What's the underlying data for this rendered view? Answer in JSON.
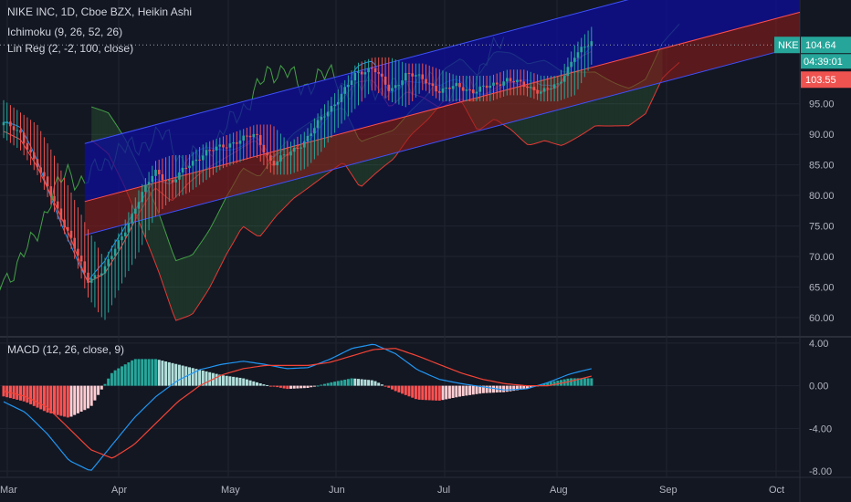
{
  "header": {
    "title": "NIKE INC, 1D, Cboe BZX, Heikin Ashi",
    "indicator1": "Ichimoku (9, 26, 52, 26)",
    "indicator2": "Lin Reg (2, -2, 100, close)",
    "macd": "MACD (12, 26, close, 9)"
  },
  "price_tags": {
    "symbol": "NKE",
    "last": "104.64",
    "countdown": "04:39:01",
    "lower": "103.55"
  },
  "colors": {
    "bg": "#131722",
    "up": "#26a69a",
    "down": "#ef5350",
    "macd_line": "#2196f3",
    "signal_line": "#f44336",
    "cloud_green": "#4caf50",
    "cloud_red": "#f44336",
    "reg_blue": "#0d0d9b",
    "reg_red": "#8b1a1a"
  },
  "chart_data": [
    {
      "type": "candlestick",
      "title": "NIKE INC, 1D, Cboe BZX, Heikin Ashi",
      "x_ticks": [
        "Mar",
        "Apr",
        "May",
        "Jun",
        "Jul",
        "Aug",
        "Sep",
        "Oct"
      ],
      "y_ticks": [
        "95.00",
        "90.00",
        "85.00",
        "80.00",
        "75.00",
        "70.00",
        "65.00",
        "60.00"
      ],
      "ylim": [
        57,
        112
      ],
      "last_price": 104.64,
      "ohlc_anchors": [
        [
          94,
          95,
          90,
          92
        ],
        [
          92,
          93,
          88,
          90
        ],
        [
          90,
          91,
          84,
          85
        ],
        [
          85,
          86,
          78,
          79
        ],
        [
          79,
          80,
          72,
          73
        ],
        [
          73,
          74,
          64,
          66
        ],
        [
          66,
          69,
          60,
          68
        ],
        [
          68,
          74,
          66,
          73
        ],
        [
          73,
          80,
          71,
          79
        ],
        [
          79,
          85,
          77,
          84
        ],
        [
          84,
          86,
          80,
          82
        ],
        [
          82,
          86,
          81,
          85
        ],
        [
          85,
          88,
          83,
          87
        ],
        [
          87,
          89,
          85,
          88
        ],
        [
          88,
          90,
          86,
          89
        ],
        [
          89,
          91,
          87,
          90
        ],
        [
          90,
          91,
          84,
          85
        ],
        [
          85,
          88,
          84,
          87
        ],
        [
          87,
          90,
          85,
          89
        ],
        [
          89,
          94,
          88,
          93
        ],
        [
          93,
          97,
          92,
          96
        ],
        [
          96,
          101,
          95,
          100
        ],
        [
          100,
          102,
          98,
          101
        ],
        [
          101,
          102,
          96,
          97
        ],
        [
          97,
          101,
          95,
          100
        ],
        [
          100,
          101,
          98,
          99
        ],
        [
          99,
          100,
          96,
          97
        ],
        [
          97,
          99,
          96,
          98
        ],
        [
          98,
          99,
          96,
          97
        ],
        [
          97,
          99,
          96,
          98
        ],
        [
          98,
          100,
          97,
          99
        ],
        [
          99,
          100,
          97,
          98
        ],
        [
          98,
          99,
          96,
          97
        ],
        [
          97,
          99,
          96,
          98
        ],
        [
          98,
          104,
          97,
          103
        ],
        [
          103,
          107,
          102,
          105
        ]
      ]
    },
    {
      "type": "bar+line",
      "title": "MACD (12, 26, close, 9)",
      "y_ticks": [
        "4.00",
        "0.00",
        "-4.00",
        "-8.00"
      ],
      "ylim": [
        -8.5,
        4.5
      ],
      "macd_anchors": [
        -1.5,
        -2.5,
        -4.5,
        -7.0,
        -8.0,
        -5.5,
        -3.0,
        -1.0,
        0.5,
        1.5,
        2.0,
        2.3,
        2.0,
        1.6,
        1.7,
        2.5,
        3.5,
        3.9,
        3.0,
        1.5,
        0.6,
        0.2,
        -0.1,
        -0.4,
        -0.3,
        0.3,
        1.1,
        1.6
      ],
      "signal_anchors": [
        -0.5,
        -1.0,
        -2.0,
        -4.0,
        -6.0,
        -6.8,
        -5.5,
        -3.5,
        -1.5,
        0.0,
        1.0,
        1.6,
        1.9,
        1.9,
        1.9,
        2.2,
        2.8,
        3.4,
        3.5,
        2.8,
        2.0,
        1.2,
        0.6,
        0.2,
        0.0,
        0.0,
        0.4,
        0.9
      ]
    }
  ]
}
